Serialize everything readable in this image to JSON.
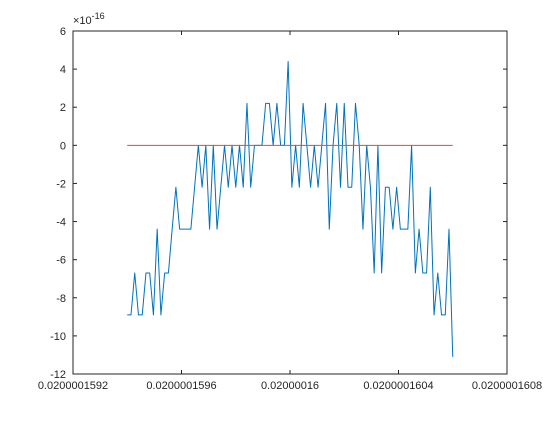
{
  "chart_data": {
    "type": "line",
    "title": "",
    "xlabel": "",
    "ylabel": "",
    "y_exponent_label": "×10",
    "y_exponent_power": "-16",
    "xlim": [
      0.0200001592,
      0.0200001608
    ],
    "ylim": [
      -12,
      6
    ],
    "x_ticks": [
      {
        "value": 0.0200001592,
        "label": "0.0200001592"
      },
      {
        "value": 0.0200001596,
        "label": "0.0200001596"
      },
      {
        "value": 0.02000016,
        "label": "0.02000016"
      },
      {
        "value": 0.0200001604,
        "label": "0.0200001604"
      },
      {
        "value": 0.0200001608,
        "label": "0.0200001608"
      }
    ],
    "y_ticks": [
      {
        "value": 6,
        "label": "6"
      },
      {
        "value": 4,
        "label": "4"
      },
      {
        "value": 2,
        "label": "2"
      },
      {
        "value": 0,
        "label": "0"
      },
      {
        "value": -2,
        "label": "-2"
      },
      {
        "value": -4,
        "label": "-4"
      },
      {
        "value": -6,
        "label": "-6"
      },
      {
        "value": -8,
        "label": "-8"
      },
      {
        "value": -10,
        "label": "-10"
      },
      {
        "value": -12,
        "label": "-12"
      }
    ],
    "grid": false,
    "x_start": 0.0200001594,
    "x_end": 0.0200001606,
    "series": [
      {
        "color": "#0072BD",
        "values": [
          -8.9,
          -8.9,
          -6.7,
          -8.9,
          -8.9,
          -6.7,
          -6.7,
          -8.9,
          -4.4,
          -8.9,
          -6.7,
          -6.7,
          -4.4,
          -2.2,
          -4.4,
          -4.4,
          -4.4,
          -4.4,
          -2.2,
          0,
          -2.2,
          0,
          -4.4,
          0,
          -4.4,
          -2.2,
          0,
          -2.2,
          0,
          -2.2,
          0,
          -2.2,
          2.2,
          -2.2,
          0,
          0,
          0,
          2.2,
          2.2,
          0,
          2.2,
          0,
          0,
          4.4,
          -2.2,
          0,
          -2.2,
          2.2,
          0,
          -2.2,
          0,
          -2.2,
          0,
          2.2,
          -4.4,
          0,
          2.2,
          -2.2,
          2.2,
          -2.2,
          -2.2,
          2.2,
          0,
          -4.4,
          0,
          -2.2,
          -6.7,
          0,
          -6.7,
          -2.2,
          -2.2,
          -4.4,
          -2.2,
          -4.4,
          -4.4,
          -4.4,
          0,
          -6.7,
          -4.4,
          -6.7,
          -6.7,
          -2.2,
          -8.9,
          -6.7,
          -8.9,
          -8.9,
          -4.4,
          -11.1
        ]
      },
      {
        "color": "#D95319",
        "values": [
          0,
          0
        ]
      }
    ]
  }
}
